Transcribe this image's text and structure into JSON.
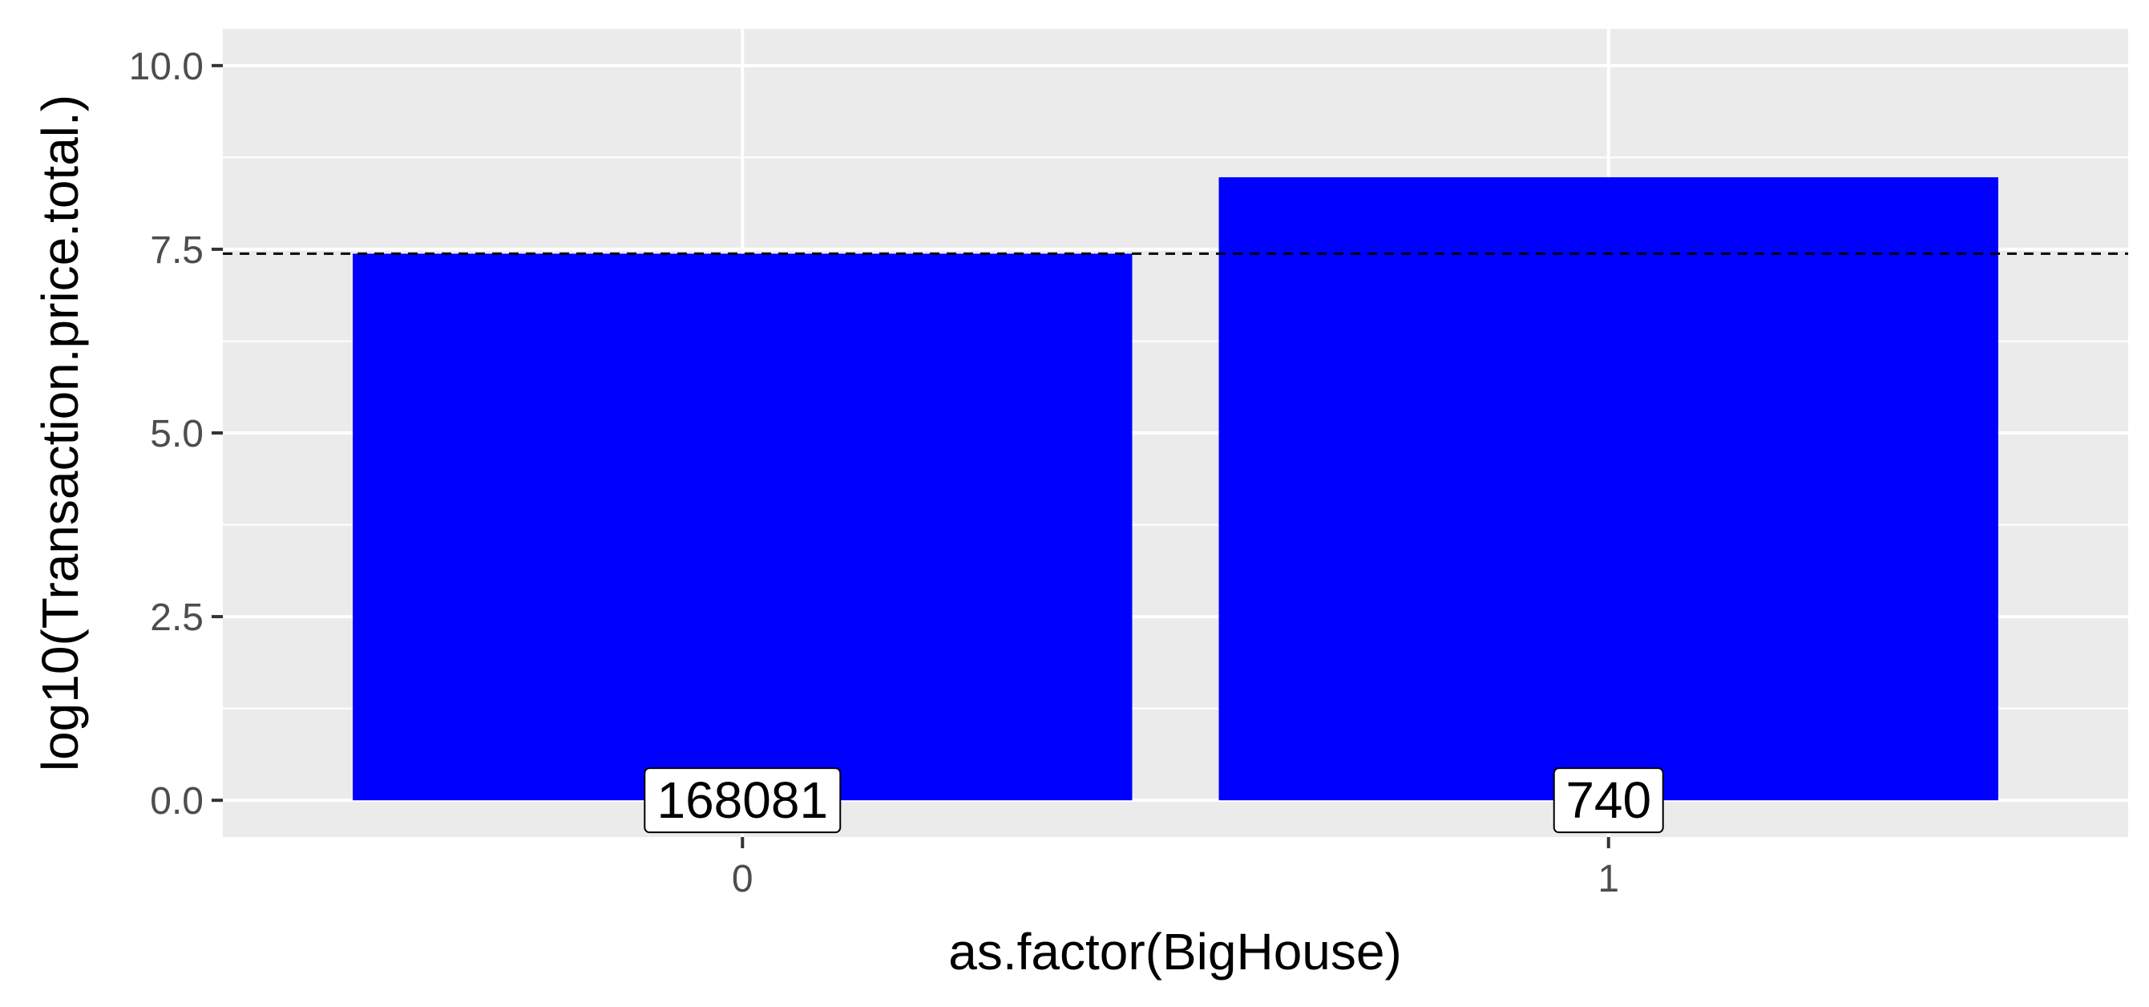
{
  "chart_data": {
    "type": "bar",
    "categories": [
      "0",
      "1"
    ],
    "values": [
      7.44,
      8.48
    ],
    "count_labels": [
      "168081",
      "740"
    ],
    "reference_line": 7.44,
    "xlabel": "as.factor(BigHouse)",
    "ylabel": "log10(Transaction.price.total.)",
    "ylim": [
      -0.5,
      10.5
    ],
    "yticks": [
      0.0,
      2.5,
      5.0,
      7.5,
      10.0
    ],
    "ytick_labels": [
      "0.0",
      "2.5",
      "5.0",
      "7.5",
      "10.0"
    ],
    "grid": true,
    "colors": {
      "bar": "#0000ff",
      "panel": "#ebebeb",
      "grid": "#ffffff",
      "reference_line": "#000000"
    }
  }
}
